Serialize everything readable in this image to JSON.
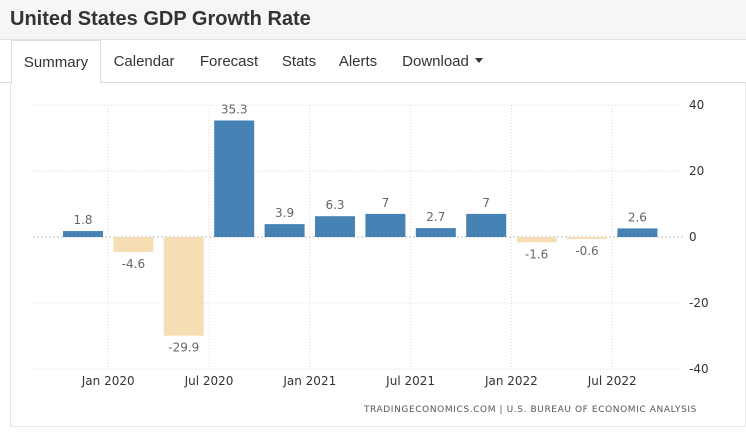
{
  "header": {
    "title": "United States GDP Growth Rate"
  },
  "tabs": [
    {
      "label": "Summary"
    },
    {
      "label": "Calendar"
    },
    {
      "label": "Forecast"
    },
    {
      "label": "Stats"
    },
    {
      "label": "Alerts"
    },
    {
      "label": "Download"
    }
  ],
  "source_text": "TRADINGECONOMICS.COM  |  U.S. BUREAU OF ECONOMIC ANALYSIS",
  "colors": {
    "positive": "#4682b4",
    "negative": "#f5deb3"
  },
  "chart_data": {
    "type": "bar",
    "title": "United States GDP Growth Rate",
    "categories": [
      "2019Q4",
      "2020Q1",
      "2020Q2",
      "2020Q3",
      "2020Q4",
      "2021Q1",
      "2021Q2",
      "2021Q3",
      "2021Q4",
      "2022Q1",
      "2022Q2",
      "2022Q3"
    ],
    "values": [
      1.8,
      -4.6,
      -29.9,
      35.3,
      3.9,
      6.3,
      7,
      2.7,
      7,
      -1.6,
      -0.6,
      2.6
    ],
    "value_labels": [
      "1.8",
      "-4.6",
      "-29.9",
      "35.3",
      "3.9",
      "6.3",
      "7",
      "2.7",
      "7",
      "-1.6",
      "-0.6",
      "2.6"
    ],
    "x_tick_labels": [
      "Jan 2020",
      "Jul 2020",
      "Jan 2021",
      "Jul 2021",
      "Jan 2022",
      "Jul 2022"
    ],
    "y_ticks": [
      40,
      20,
      0,
      -20,
      -40
    ],
    "ylim": [
      -40,
      40
    ],
    "xlabel": "",
    "ylabel": "",
    "y_axis_side": "right",
    "grid": true,
    "legend": "none"
  }
}
